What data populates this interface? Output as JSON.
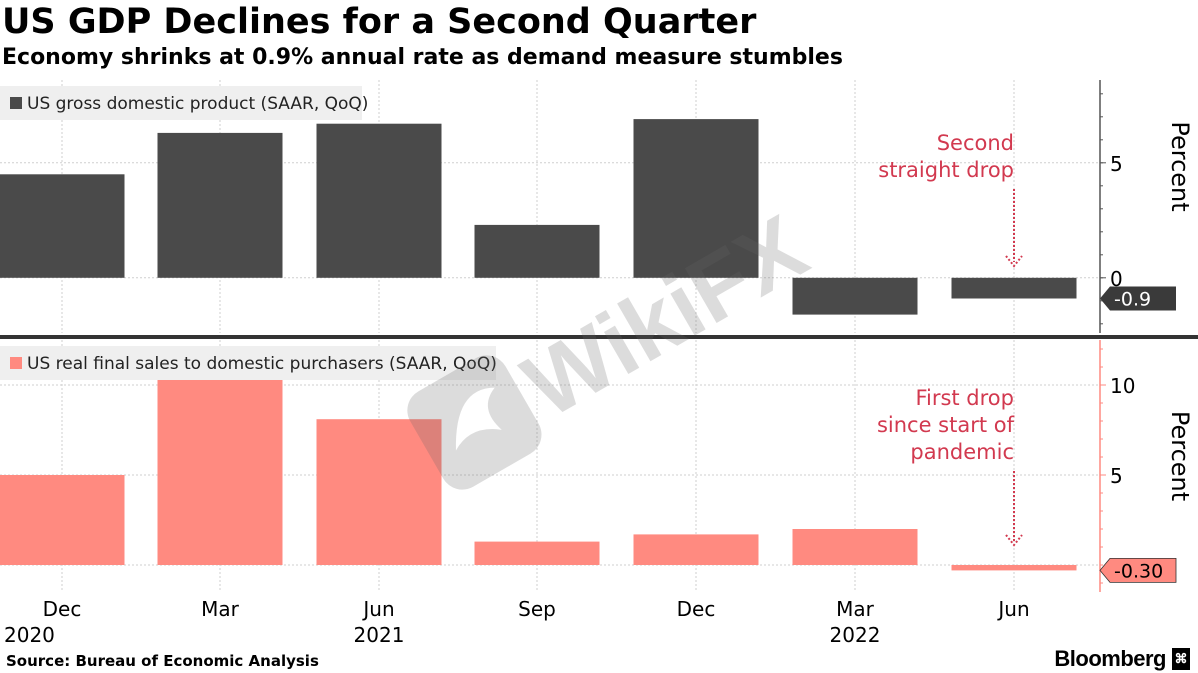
{
  "title": "US GDP Declines for a Second Quarter",
  "subtitle": "Economy shrinks at 0.9% annual rate as demand measure stumbles",
  "source": "Source: Bureau of Economic Analysis",
  "brand": "Bloomberg",
  "brand_mark_icon": "bloomberg-terminal-icon",
  "watermark": "WikiFX",
  "colors": {
    "gdp": "#4a4a4a",
    "sales": "#ff8a80",
    "annotation": "#d2394f",
    "panel_bg": "#efefef"
  },
  "chart_data": [
    {
      "type": "bar",
      "title": "US gross domestic product (SAAR, QoQ)",
      "ylabel": "Percent",
      "categories": [
        "Dec 2020",
        "Mar 2021",
        "Jun 2021",
        "Sep 2021",
        "Dec 2021",
        "Mar 2022",
        "Jun 2022"
      ],
      "values": [
        4.5,
        6.3,
        6.7,
        2.3,
        6.9,
        -1.6,
        -0.9
      ],
      "ylim": [
        -2.4,
        8.6
      ],
      "yticks": [
        0,
        5
      ],
      "grid": true,
      "last_value_label": "-0.9",
      "annotation": [
        "Second",
        "straight drop"
      ]
    },
    {
      "type": "bar",
      "title": "US real final sales to domestic purchasers (SAAR, QoQ)",
      "ylabel": "Percent",
      "categories": [
        "Dec 2020",
        "Mar 2021",
        "Jun 2021",
        "Sep 2021",
        "Dec 2021",
        "Mar 2022",
        "Jun 2022"
      ],
      "values": [
        5.0,
        10.4,
        8.1,
        1.3,
        1.7,
        2.0,
        -0.3
      ],
      "ylim": [
        -1.5,
        12.5
      ],
      "yticks": [
        5,
        10
      ],
      "grid": true,
      "last_value_label": "-0.30",
      "annotation": [
        "First drop",
        "since start of",
        "pandemic"
      ]
    }
  ],
  "x_axis": {
    "month_labels": [
      "Dec",
      "Mar",
      "Jun",
      "Sep",
      "Dec",
      "Mar",
      "Jun"
    ],
    "year_labels": [
      {
        "label": "2020",
        "index": 0
      },
      {
        "label": "2021",
        "index": 2
      },
      {
        "label": "2022",
        "index": 5
      }
    ]
  }
}
